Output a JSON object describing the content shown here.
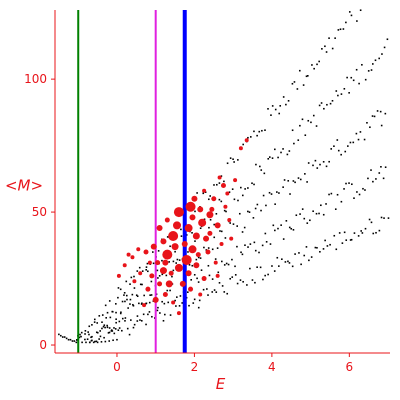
{
  "chart_data": {
    "type": "scatter",
    "xlabel": "E",
    "ylabel": "<M>",
    "xlim": [
      -1.6,
      7.05
    ],
    "ylim": [
      -3,
      126
    ],
    "xticks": [
      0,
      2,
      4,
      6
    ],
    "yticks": [
      0,
      50,
      100
    ],
    "grid": false,
    "legend": "none",
    "colors": {
      "axes": "#e8141a",
      "background_points": "#000000",
      "highlight_points": "#e8141a"
    },
    "vertical_lines": [
      {
        "x": -1.0,
        "color": "#008000"
      },
      {
        "x": 1.0,
        "color": "#e020e0"
      },
      {
        "x": 1.75,
        "color": "#0000ff"
      }
    ],
    "background_points": {
      "color": "#000000",
      "bands": [
        {
          "x_start": -1.5,
          "x_end": 7.0,
          "slope": 17.5,
          "intercept": 17,
          "spread": 4
        },
        {
          "x_start": -1.5,
          "x_end": 7.0,
          "slope": 14.0,
          "intercept": 14,
          "spread": 4
        },
        {
          "x_start": -1.4,
          "x_end": 7.0,
          "slope": 11.0,
          "intercept": 11,
          "spread": 4
        },
        {
          "x_start": -1.3,
          "x_end": 7.0,
          "slope": 8.3,
          "intercept": 8,
          "spread": 4
        },
        {
          "x_start": -1.2,
          "x_end": 7.0,
          "slope": 6.0,
          "intercept": 5,
          "spread": 3.5
        }
      ],
      "points": [
        [
          -1.5,
          4
        ],
        [
          -1.45,
          3.5
        ],
        [
          -1.4,
          3
        ],
        [
          -1.35,
          3
        ],
        [
          -1.3,
          2.5
        ],
        [
          -1.25,
          2
        ],
        [
          -1.2,
          2
        ],
        [
          -1.15,
          1.5
        ],
        [
          -1.1,
          1.5
        ],
        [
          -1.05,
          1
        ],
        [
          -1.0,
          1
        ],
        [
          -0.9,
          1
        ],
        [
          -0.8,
          1
        ],
        [
          -0.7,
          1
        ],
        [
          -0.6,
          1
        ],
        [
          -0.5,
          1
        ],
        [
          -0.4,
          1.2
        ],
        [
          -0.3,
          1.3
        ],
        [
          -0.2,
          1.5
        ],
        [
          -0.1,
          1.8
        ],
        [
          0.0,
          2
        ]
      ]
    },
    "highlight_points": {
      "color": "#e8141a",
      "points": [
        {
          "x": 1.6,
          "y": 50,
          "size": 5
        },
        {
          "x": 1.9,
          "y": 52,
          "size": 5
        },
        {
          "x": 1.45,
          "y": 41,
          "size": 5
        },
        {
          "x": 1.85,
          "y": 44,
          "size": 4
        },
        {
          "x": 1.55,
          "y": 45,
          "size": 4
        },
        {
          "x": 2.2,
          "y": 46,
          "size": 4
        },
        {
          "x": 1.3,
          "y": 34,
          "size": 5
        },
        {
          "x": 1.95,
          "y": 36,
          "size": 4
        },
        {
          "x": 1.6,
          "y": 29,
          "size": 4
        },
        {
          "x": 1.8,
          "y": 32,
          "size": 5
        },
        {
          "x": 1.2,
          "y": 28,
          "size": 3.5
        },
        {
          "x": 1.5,
          "y": 37,
          "size": 3.5
        },
        {
          "x": 2.4,
          "y": 49,
          "size": 3.5
        },
        {
          "x": 2.05,
          "y": 41,
          "size": 3.5
        },
        {
          "x": 1.35,
          "y": 23,
          "size": 3.5
        },
        {
          "x": 1.7,
          "y": 23,
          "size": 3
        },
        {
          "x": 1.0,
          "y": 17,
          "size": 3
        },
        {
          "x": 0.95,
          "y": 37,
          "size": 3
        },
        {
          "x": 0.75,
          "y": 35,
          "size": 2.5
        },
        {
          "x": 1.1,
          "y": 44,
          "size": 3
        },
        {
          "x": 2.6,
          "y": 45,
          "size": 3
        },
        {
          "x": 2.5,
          "y": 55,
          "size": 2.5
        },
        {
          "x": 2.75,
          "y": 60,
          "size": 2.5
        },
        {
          "x": 2.3,
          "y": 40,
          "size": 3
        },
        {
          "x": 2.05,
          "y": 30,
          "size": 3
        },
        {
          "x": 2.25,
          "y": 25,
          "size": 2.5
        },
        {
          "x": 1.85,
          "y": 27,
          "size": 3
        },
        {
          "x": 1.2,
          "y": 39,
          "size": 3
        },
        {
          "x": 1.1,
          "y": 23,
          "size": 2.5
        },
        {
          "x": 0.8,
          "y": 21,
          "size": 2.5
        },
        {
          "x": 0.6,
          "y": 27,
          "size": 2
        },
        {
          "x": 0.4,
          "y": 33,
          "size": 2
        },
        {
          "x": 0.2,
          "y": 30,
          "size": 2
        },
        {
          "x": 0.05,
          "y": 26,
          "size": 2
        },
        {
          "x": 0.45,
          "y": 24,
          "size": 2
        },
        {
          "x": 0.7,
          "y": 15,
          "size": 2
        },
        {
          "x": 1.25,
          "y": 19,
          "size": 2.5
        },
        {
          "x": 1.45,
          "y": 16,
          "size": 2
        },
        {
          "x": 1.6,
          "y": 12,
          "size": 2
        },
        {
          "x": 0.9,
          "y": 26,
          "size": 2.5
        },
        {
          "x": 0.55,
          "y": 36,
          "size": 2
        },
        {
          "x": 0.3,
          "y": 34,
          "size": 2
        },
        {
          "x": 2.0,
          "y": 55,
          "size": 3
        },
        {
          "x": 2.15,
          "y": 51,
          "size": 3
        },
        {
          "x": 2.45,
          "y": 51,
          "size": 2.5
        },
        {
          "x": 2.65,
          "y": 63,
          "size": 2
        },
        {
          "x": 2.85,
          "y": 57,
          "size": 2
        },
        {
          "x": 3.05,
          "y": 62,
          "size": 2
        },
        {
          "x": 2.35,
          "y": 35,
          "size": 2.5
        },
        {
          "x": 2.55,
          "y": 31,
          "size": 2
        },
        {
          "x": 2.7,
          "y": 38,
          "size": 2
        },
        {
          "x": 2.9,
          "y": 47,
          "size": 2
        },
        {
          "x": 2.8,
          "y": 52,
          "size": 2
        },
        {
          "x": 3.2,
          "y": 74,
          "size": 2
        },
        {
          "x": 3.35,
          "y": 77,
          "size": 2
        },
        {
          "x": 1.25,
          "y": 31,
          "size": 3
        },
        {
          "x": 1.95,
          "y": 48,
          "size": 3
        },
        {
          "x": 1.3,
          "y": 47,
          "size": 2.5
        },
        {
          "x": 2.25,
          "y": 58,
          "size": 2
        },
        {
          "x": 1.75,
          "y": 38,
          "size": 3
        },
        {
          "x": 2.1,
          "y": 34,
          "size": 2.5
        },
        {
          "x": 2.4,
          "y": 42,
          "size": 2.5
        },
        {
          "x": 1.05,
          "y": 31,
          "size": 2.5
        },
        {
          "x": 1.4,
          "y": 27,
          "size": 2.5
        },
        {
          "x": 0.85,
          "y": 31,
          "size": 2
        },
        {
          "x": 2.95,
          "y": 40,
          "size": 2
        },
        {
          "x": 2.6,
          "y": 26,
          "size": 2
        },
        {
          "x": 1.9,
          "y": 21,
          "size": 2.5
        },
        {
          "x": 2.15,
          "y": 19,
          "size": 2
        }
      ]
    }
  }
}
